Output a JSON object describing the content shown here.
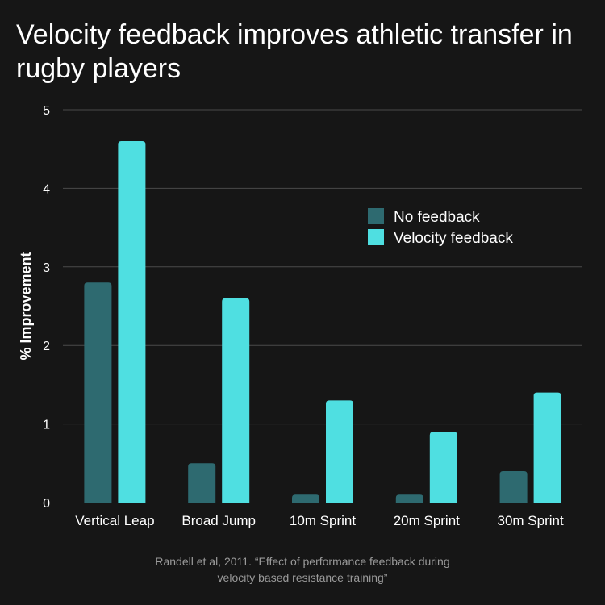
{
  "title": "Velocity feedback improves athletic transfer in rugby players",
  "caption": {
    "line1": "Randell et al, 2011. “Effect of performance feedback during",
    "line2": "velocity based resistance training”"
  },
  "colors": {
    "background": "#161616",
    "grid": "#4a4a4a",
    "no_feedback": "#2e6a70",
    "velocity_feedback": "#4fdfe1"
  },
  "chart_data": {
    "type": "bar",
    "title": "Velocity feedback improves athletic transfer in rugby players",
    "xlabel": "",
    "ylabel": "% Improvement",
    "ylim": [
      0,
      5
    ],
    "yticks": [
      0,
      1,
      2,
      3,
      4,
      5
    ],
    "grid": true,
    "legend_position": "right",
    "categories": [
      "Vertical Leap",
      "Broad Jump",
      "10m Sprint",
      "20m Sprint",
      "30m Sprint"
    ],
    "series": [
      {
        "name": "No feedback",
        "color": "#2e6a70",
        "values": [
          2.8,
          0.5,
          0.1,
          0.1,
          0.4
        ]
      },
      {
        "name": "Velocity feedback",
        "color": "#4fdfe1",
        "values": [
          4.6,
          2.6,
          1.3,
          0.9,
          1.4
        ]
      }
    ]
  }
}
